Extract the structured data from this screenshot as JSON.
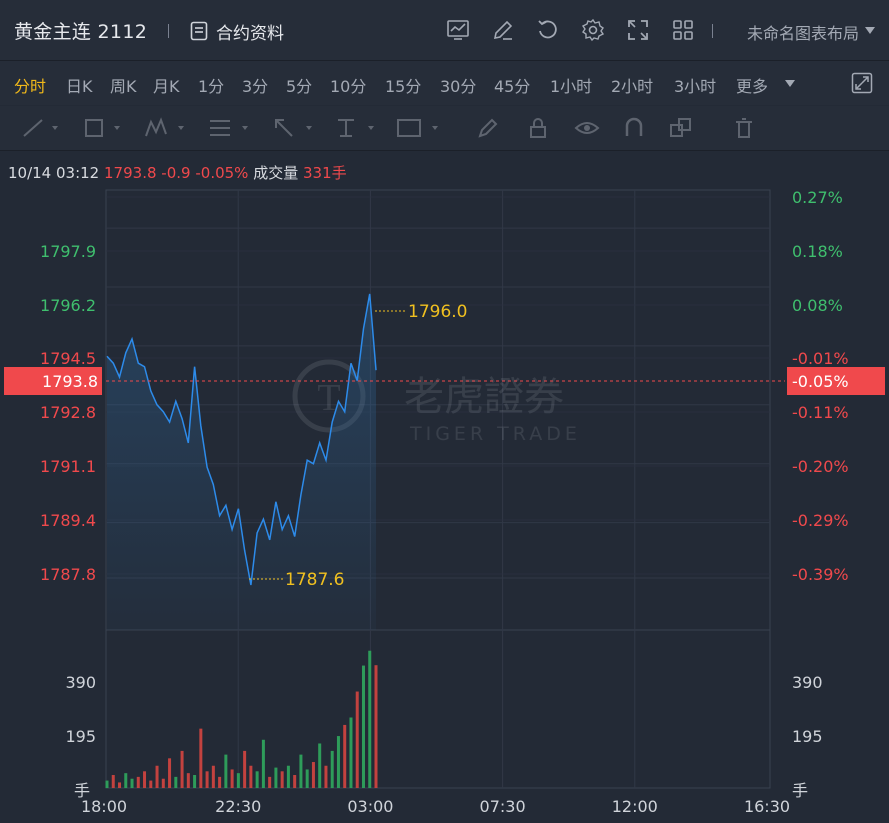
{
  "header": {
    "symbol_title": "黄金主连 2112",
    "contract_info_label": "合约资料",
    "layout_label": "未命名图表布局",
    "icons": [
      "line-chart-icon",
      "edit-icon",
      "refresh-icon",
      "settings-icon",
      "fullscreen-icon",
      "grid-icon"
    ]
  },
  "periods": [
    "分时",
    "日K",
    "周K",
    "月K",
    "1分",
    "3分",
    "5分",
    "10分",
    "15分",
    "30分",
    "45分",
    "1小时",
    "2小时",
    "3小时",
    "更多"
  ],
  "active_period": "分时",
  "info": {
    "time": "10/14 03:12",
    "price": "1793.8",
    "change": "-0.9",
    "change_pct": "-0.05%",
    "volume_label": "成交量",
    "volume": "331手"
  },
  "chart_data": {
    "type": "line",
    "y_price_ticks": [
      "1797.9",
      "1796.2",
      "1794.5",
      "1792.8",
      "1791.1",
      "1789.4",
      "1787.8"
    ],
    "y_pct_ticks": [
      "0.27%",
      "0.18%",
      "0.08%",
      "-0.01%",
      "-0.11%",
      "-0.20%",
      "-0.29%",
      "-0.39%"
    ],
    "current_price_label": "1793.8",
    "current_pct_label": "-0.05%",
    "high_label": "1796.0",
    "low_label": "1787.6",
    "x_ticks": [
      "18:00",
      "22:30",
      "03:00",
      "07:30",
      "12:00",
      "16:30"
    ],
    "volume_ticks": [
      "390",
      "195"
    ],
    "volume_unit": "手",
    "ylim": [
      1786.3,
      1799.0
    ],
    "prev_close": 1794.7,
    "current": 1793.8,
    "high": 1796.0,
    "low": 1787.6,
    "price_series": [
      1794.2,
      1794.0,
      1793.6,
      1794.3,
      1794.7,
      1794.0,
      1793.9,
      1793.2,
      1792.8,
      1792.6,
      1792.3,
      1792.9,
      1792.4,
      1791.7,
      1793.9,
      1792.2,
      1791.0,
      1790.5,
      1789.6,
      1789.9,
      1789.2,
      1789.8,
      1788.6,
      1787.6,
      1789.1,
      1789.5,
      1788.9,
      1790.0,
      1789.2,
      1789.6,
      1789.0,
      1790.2,
      1791.2,
      1791.1,
      1791.7,
      1791.2,
      1792.3,
      1792.9,
      1792.6,
      1794.0,
      1793.5,
      1795.0,
      1796.0,
      1793.8
    ],
    "volume_series": [
      20,
      35,
      15,
      40,
      25,
      30,
      45,
      20,
      60,
      25,
      80,
      30,
      100,
      40,
      35,
      160,
      45,
      60,
      30,
      90,
      50,
      40,
      100,
      60,
      45,
      130,
      30,
      55,
      45,
      60,
      35,
      90,
      50,
      70,
      120,
      60,
      100,
      140,
      170,
      190,
      260,
      330,
      370,
      331
    ]
  }
}
